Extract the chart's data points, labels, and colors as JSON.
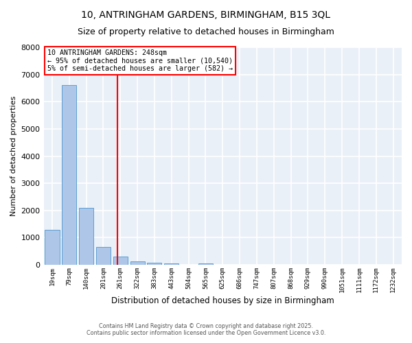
{
  "title": "10, ANTRINGHAM GARDENS, BIRMINGHAM, B15 3QL",
  "subtitle": "Size of property relative to detached houses in Birmingham",
  "xlabel": "Distribution of detached houses by size in Birmingham",
  "ylabel": "Number of detached properties",
  "bar_labels": [
    "19sqm",
    "79sqm",
    "140sqm",
    "201sqm",
    "261sqm",
    "322sqm",
    "383sqm",
    "443sqm",
    "504sqm",
    "565sqm",
    "625sqm",
    "686sqm",
    "747sqm",
    "807sqm",
    "868sqm",
    "929sqm",
    "990sqm",
    "1051sqm",
    "1111sqm",
    "1172sqm",
    "1232sqm"
  ],
  "bar_values": [
    1300,
    6600,
    2100,
    650,
    300,
    120,
    80,
    60,
    0,
    60,
    0,
    0,
    0,
    0,
    0,
    0,
    0,
    0,
    0,
    0,
    0
  ],
  "bar_color": "#aec6e8",
  "bar_edge_color": "#5a9fd4",
  "vline_x_index": 3.82,
  "vline_color": "red",
  "annotation_line1": "10 ANTRINGHAM GARDENS: 248sqm",
  "annotation_line2": "← 95% of detached houses are smaller (10,540)",
  "annotation_line3": "5% of semi-detached houses are larger (582) →",
  "annotation_box_color": "red",
  "ylim": [
    0,
    8000
  ],
  "yticks": [
    0,
    1000,
    2000,
    3000,
    4000,
    5000,
    6000,
    7000,
    8000
  ],
  "bg_color": "#eaf0f8",
  "grid_color": "white",
  "title_fontsize": 10,
  "subtitle_fontsize": 9,
  "footer_line1": "Contains HM Land Registry data © Crown copyright and database right 2025.",
  "footer_line2": "Contains public sector information licensed under the Open Government Licence v3.0."
}
